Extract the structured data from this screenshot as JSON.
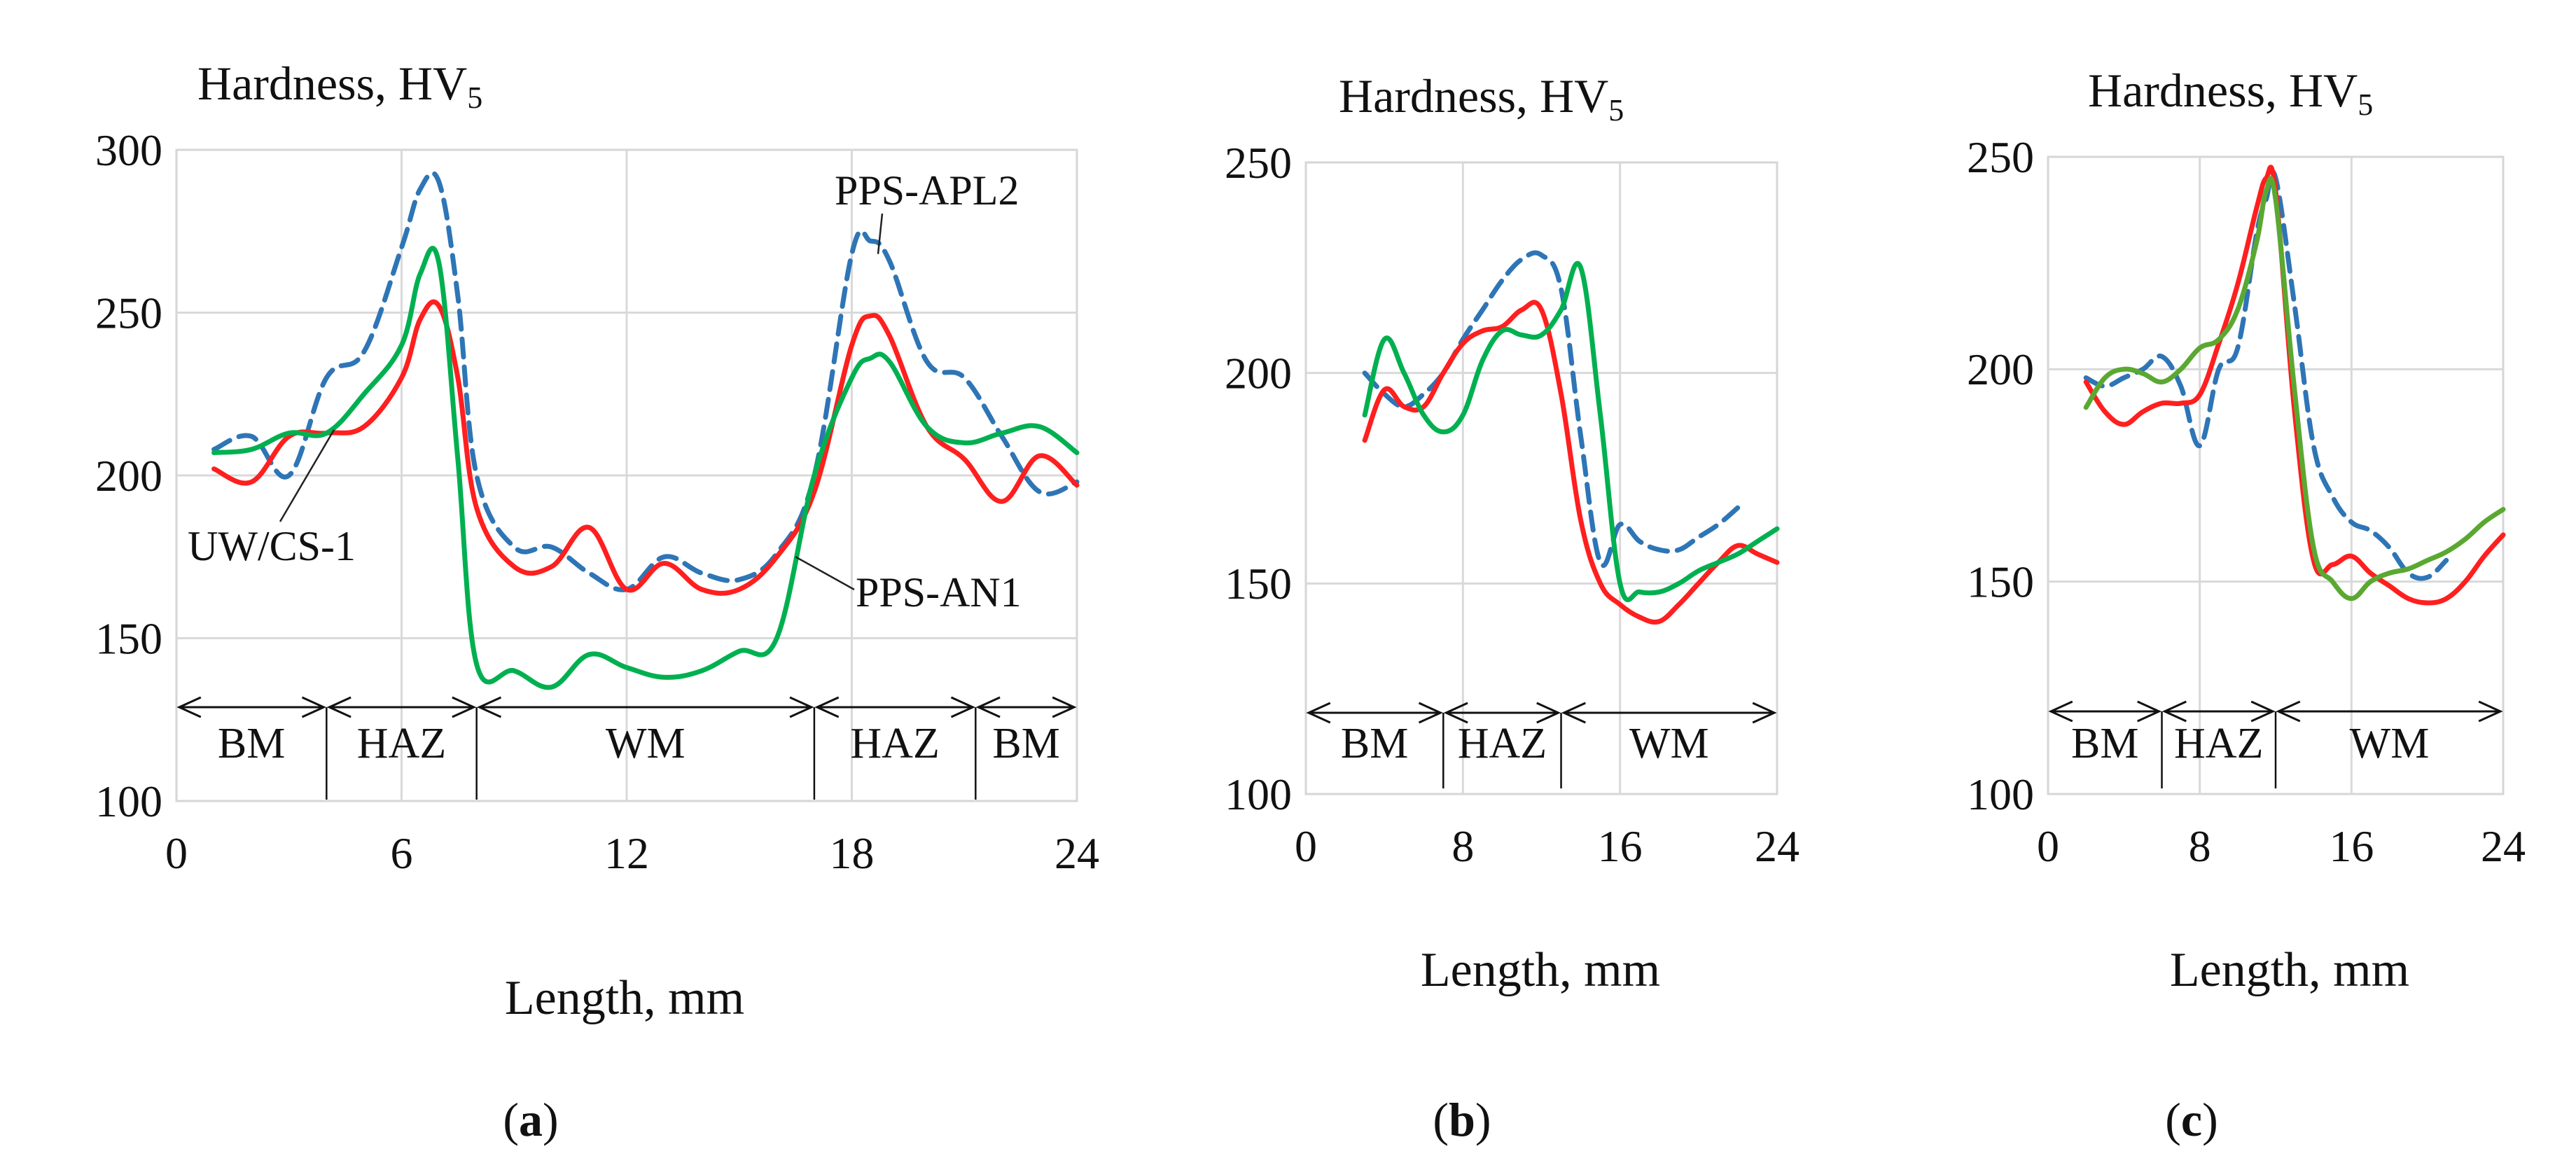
{
  "chart_data": [
    {
      "type": "line",
      "panel_label": "a",
      "title": "Hardness, HV",
      "title_sub": "5",
      "xlabel": "Length, mm",
      "ylabel": "",
      "xlim": [
        0,
        24
      ],
      "ylim": [
        100,
        300
      ],
      "xticks": [
        0,
        6,
        12,
        18,
        24
      ],
      "yticks": [
        100,
        150,
        200,
        250,
        300
      ],
      "grid": true,
      "series": [
        {
          "name": "PPS-APL2",
          "color": "#2e75b6",
          "dash": "dashed",
          "x": [
            1,
            2,
            3,
            4,
            5,
            6,
            6.5,
            7,
            7.5,
            8,
            9,
            10,
            11,
            12,
            13,
            14,
            15,
            16,
            17,
            18,
            18.5,
            19,
            20,
            21,
            22,
            23,
            24
          ],
          "y": [
            208,
            212,
            200,
            230,
            238,
            270,
            288,
            290,
            255,
            200,
            178,
            178,
            170,
            165,
            175,
            170,
            168,
            176,
            200,
            268,
            272,
            266,
            235,
            230,
            212,
            195,
            198
          ]
        },
        {
          "name": "UW/CS-1",
          "color": "#ff1f1f",
          "dash": "solid",
          "x": [
            1,
            2,
            3,
            4,
            5,
            6,
            6.5,
            7,
            7.5,
            8,
            9,
            10,
            11,
            12,
            13,
            14,
            15,
            16,
            17,
            18,
            18.5,
            19,
            20,
            21,
            22,
            23,
            24
          ],
          "y": [
            202,
            198,
            212,
            213,
            215,
            230,
            248,
            252,
            230,
            190,
            172,
            172,
            184,
            165,
            173,
            165,
            165,
            175,
            195,
            240,
            249,
            243,
            215,
            205,
            192,
            206,
            197
          ]
        },
        {
          "name": "PPS-AN1",
          "color": "#00b050",
          "dash": "solid",
          "x": [
            1,
            2,
            3,
            4,
            5,
            6,
            6.5,
            7,
            7.5,
            8,
            9,
            10,
            11,
            12,
            13,
            14,
            15,
            16,
            17,
            18,
            18.5,
            19,
            20,
            21,
            22,
            23,
            24
          ],
          "y": [
            207,
            208,
            213,
            213,
            225,
            240,
            262,
            265,
            205,
            142,
            140,
            135,
            145,
            141,
            138,
            140,
            146,
            150,
            200,
            230,
            236,
            235,
            215,
            210,
            213,
            215,
            207
          ]
        }
      ],
      "annotations": [
        "PPS-APL2",
        "UW/CS-1",
        "PPS-AN1"
      ],
      "zones": [
        {
          "label": "BM",
          "from": 0,
          "to": 4
        },
        {
          "label": "HAZ",
          "from": 4,
          "to": 8
        },
        {
          "label": "WM",
          "from": 8,
          "to": 17
        },
        {
          "label": "HAZ",
          "from": 17,
          "to": 21.3
        },
        {
          "label": "BM",
          "from": 21.3,
          "to": 24
        }
      ]
    },
    {
      "type": "line",
      "panel_label": "b",
      "title": "Hardness, HV",
      "title_sub": "5",
      "xlabel": "Length, mm",
      "ylabel": "",
      "xlim": [
        0,
        24
      ],
      "ylim": [
        100,
        250
      ],
      "xticks": [
        0,
        8,
        16,
        24
      ],
      "yticks": [
        100,
        150,
        200,
        250
      ],
      "grid": true,
      "series": [
        {
          "name": "PPS-APL2",
          "color": "#2e75b6",
          "dash": "dashed",
          "x": [
            3,
            4,
            5,
            6,
            7,
            8,
            9,
            10,
            11,
            12,
            13,
            14,
            15,
            16,
            17,
            18,
            19,
            20,
            21,
            22
          ],
          "y": [
            200,
            195,
            192,
            195,
            200,
            208,
            215,
            222,
            227,
            228,
            220,
            185,
            155,
            164,
            160,
            158,
            158,
            161,
            164,
            168
          ]
        },
        {
          "name": "UW/CS-1",
          "color": "#ff1f1f",
          "dash": "solid",
          "x": [
            3,
            4,
            5,
            6,
            7,
            8,
            9,
            10,
            11,
            12,
            13,
            14,
            15,
            16,
            17,
            18,
            19,
            20,
            21,
            22,
            23,
            24
          ],
          "y": [
            184,
            196,
            192,
            192,
            200,
            207,
            210,
            211,
            215,
            215,
            195,
            165,
            150,
            145,
            142,
            141,
            145,
            150,
            155,
            159,
            157,
            155
          ]
        },
        {
          "name": "PPS-AN1",
          "color": "#00b050",
          "dash": "solid",
          "x": [
            3,
            4,
            5,
            6,
            7,
            8,
            9,
            10,
            11,
            12,
            13,
            14,
            15,
            16,
            17,
            18,
            19,
            20,
            21,
            22,
            23,
            24
          ],
          "y": [
            190,
            208,
            200,
            190,
            186,
            190,
            203,
            210,
            209,
            209,
            215,
            225,
            190,
            150,
            148,
            148,
            150,
            153,
            155,
            157,
            160,
            163
          ]
        }
      ],
      "zones": [
        {
          "label": "BM",
          "from": 0,
          "to": 7
        },
        {
          "label": "HAZ",
          "from": 7,
          "to": 13
        },
        {
          "label": "WM",
          "from": 13,
          "to": 24
        }
      ]
    },
    {
      "type": "line",
      "panel_label": "c",
      "title": "Hardness, HV",
      "title_sub": "5",
      "xlabel": "Length, mm",
      "ylabel": "",
      "xlim": [
        0,
        24
      ],
      "ylim": [
        100,
        250
      ],
      "xticks": [
        0,
        8,
        16,
        24
      ],
      "yticks": [
        100,
        150,
        200,
        250
      ],
      "grid": true,
      "series": [
        {
          "name": "PPS-APL2",
          "color": "#2e75b6",
          "dash": "dashed",
          "x": [
            2,
            3,
            4,
            5,
            6,
            7,
            8,
            9,
            10,
            11,
            11.5,
            12,
            13,
            14,
            15,
            16,
            17,
            18,
            19,
            20,
            21
          ],
          "y": [
            198,
            196,
            198,
            200,
            203,
            196,
            182,
            200,
            205,
            232,
            240,
            245,
            215,
            182,
            170,
            164,
            162,
            158,
            152,
            151,
            155
          ]
        },
        {
          "name": "UW/CS-1",
          "color": "#ff1f1f",
          "dash": "solid",
          "x": [
            2,
            3,
            4,
            5,
            6,
            7,
            8,
            9,
            10,
            11,
            11.5,
            12,
            13,
            14,
            15,
            16,
            17,
            18,
            19,
            20,
            21,
            22,
            23,
            24
          ],
          "y": [
            197,
            190,
            187,
            190,
            192,
            192,
            194,
            206,
            220,
            238,
            245,
            242,
            190,
            155,
            154,
            156,
            152,
            149,
            146,
            145,
            146,
            150,
            156,
            161
          ]
        },
        {
          "name": "PPS-AN1",
          "color": "#5aa832",
          "dash": "solid",
          "x": [
            2,
            3,
            4,
            5,
            6,
            7,
            8,
            9,
            10,
            11,
            11.5,
            12,
            13,
            14,
            15,
            16,
            17,
            18,
            19,
            20,
            21,
            22,
            23,
            24
          ],
          "y": [
            191,
            198,
            200,
            199,
            197,
            200,
            205,
            207,
            214,
            230,
            242,
            240,
            195,
            158,
            150,
            146,
            150,
            152,
            153,
            155,
            157,
            160,
            164,
            167
          ]
        }
      ],
      "zones": [
        {
          "label": "BM",
          "from": 0,
          "to": 6
        },
        {
          "label": "HAZ",
          "from": 6,
          "to": 12
        },
        {
          "label": "WM",
          "from": 12,
          "to": 24
        }
      ]
    }
  ]
}
